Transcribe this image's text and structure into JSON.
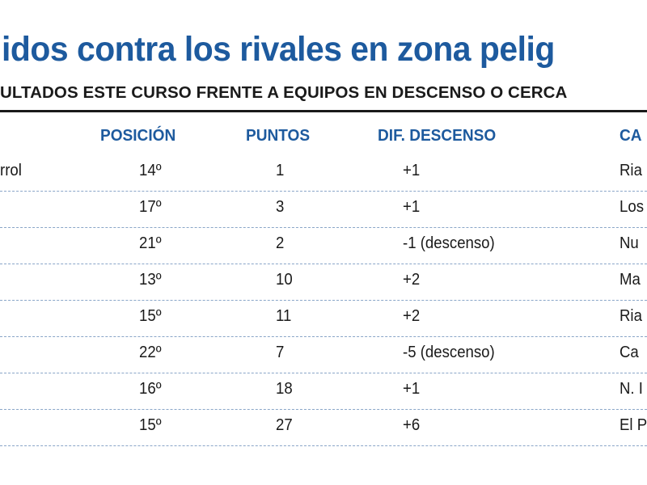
{
  "header": {
    "title": "idos contra los rivales en zona pelig",
    "subtitle": "ULTADOS ESTE CURSO FRENTE A EQUIPOS EN DESCENSO O CERCA"
  },
  "table": {
    "columns": [
      "",
      "POSICIÓN",
      "PUNTOS",
      "DIF. DESCENSO",
      "CA"
    ],
    "rows": [
      [
        "rrol",
        "14º",
        "1",
        "+1",
        "Ria"
      ],
      [
        "",
        "17º",
        "3",
        "+1",
        "Los"
      ],
      [
        "",
        "21º",
        "2",
        "-1 (descenso)",
        "Nu"
      ],
      [
        "",
        "13º",
        "10",
        "+2",
        "Ma"
      ],
      [
        "",
        "15º",
        "11",
        "+2",
        "Ria"
      ],
      [
        "",
        "22º",
        "7",
        "-5 (descenso)",
        "Ca"
      ],
      [
        "",
        "16º",
        "18",
        "+1",
        "N. I"
      ],
      [
        "",
        "15º",
        "27",
        "+6",
        "El P"
      ]
    ]
  },
  "colors": {
    "accent": "#1d5a9e",
    "text": "#1a1a1a",
    "divider": "#8aa6c8"
  }
}
